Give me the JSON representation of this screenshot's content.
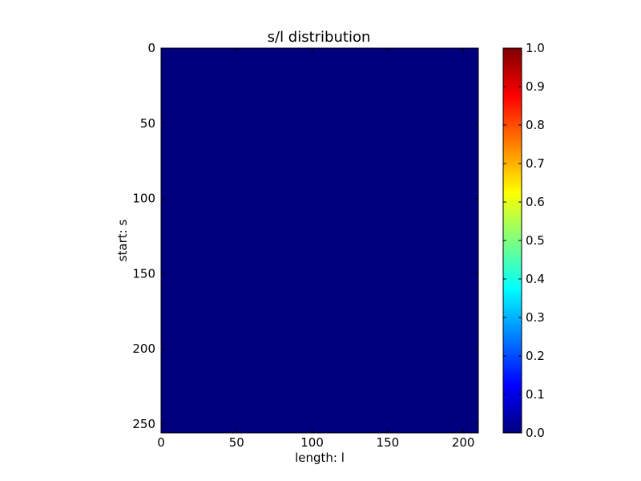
{
  "chart_data": {
    "type": "heatmap",
    "title": "s/l distribution",
    "xlabel": "length: l",
    "ylabel": "start: s",
    "xlim": [
      0,
      210
    ],
    "ylim": [
      256,
      0
    ],
    "x_ticks": [
      0,
      50,
      100,
      150,
      200
    ],
    "y_ticks": [
      0,
      50,
      100,
      150,
      200,
      250
    ],
    "x_tick_labels": [
      "0",
      "50",
      "100",
      "150",
      "200"
    ],
    "y_tick_labels": [
      "0",
      "50",
      "100",
      "150",
      "200",
      "250"
    ],
    "grid": false,
    "uniform_value": 0.0,
    "colormap": "jet",
    "cell_color": "#00007f",
    "colorbar": {
      "range": [
        0.0,
        1.0
      ],
      "ticks": [
        0.0,
        0.1,
        0.2,
        0.3,
        0.4,
        0.5,
        0.6,
        0.7,
        0.8,
        0.9,
        1.0
      ],
      "tick_labels": [
        "0.0",
        "0.1",
        "0.2",
        "0.3",
        "0.4",
        "0.5",
        "0.6",
        "0.7",
        "0.8",
        "0.9",
        "1.0"
      ],
      "stops": [
        "#00007f",
        "#0000ff",
        "#007fff",
        "#00ffff",
        "#7fff7f",
        "#ffff00",
        "#ff7f00",
        "#ff0000",
        "#7f0000"
      ]
    }
  }
}
